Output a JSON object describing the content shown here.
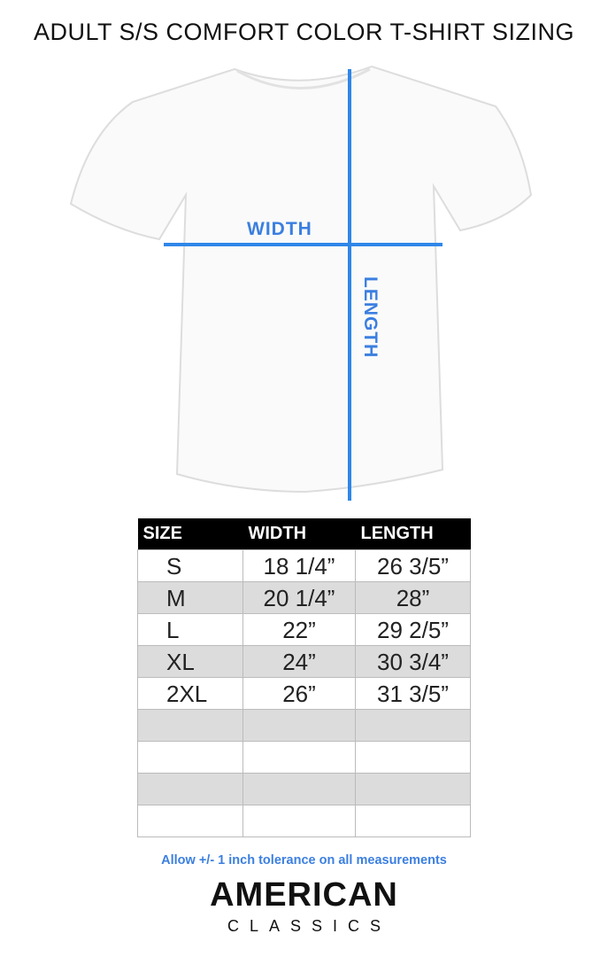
{
  "title": "ADULT S/S COMFORT COLOR T-SHIRT SIZING",
  "diagram": {
    "width_label": "WIDTH",
    "length_label": "LENGTH",
    "line_color": "#2f86e8"
  },
  "table": {
    "headers": [
      "SIZE",
      "WIDTH",
      "LENGTH"
    ],
    "rows": [
      [
        "S",
        "18 1/4”",
        "26 3/5”"
      ],
      [
        "M",
        "20 1/4”",
        "28”"
      ],
      [
        "L",
        "22”",
        "29 2/5”"
      ],
      [
        "XL",
        "24”",
        "30 3/4”"
      ],
      [
        "2XL",
        "26”",
        "31 3/5”"
      ],
      [
        "",
        "",
        ""
      ],
      [
        "",
        "",
        ""
      ],
      [
        "",
        "",
        ""
      ],
      [
        "",
        "",
        ""
      ]
    ]
  },
  "note": "Allow +/- 1 inch tolerance on all measurements",
  "logo": {
    "line1": "AMERICAN",
    "line2": "CLASSICS"
  }
}
